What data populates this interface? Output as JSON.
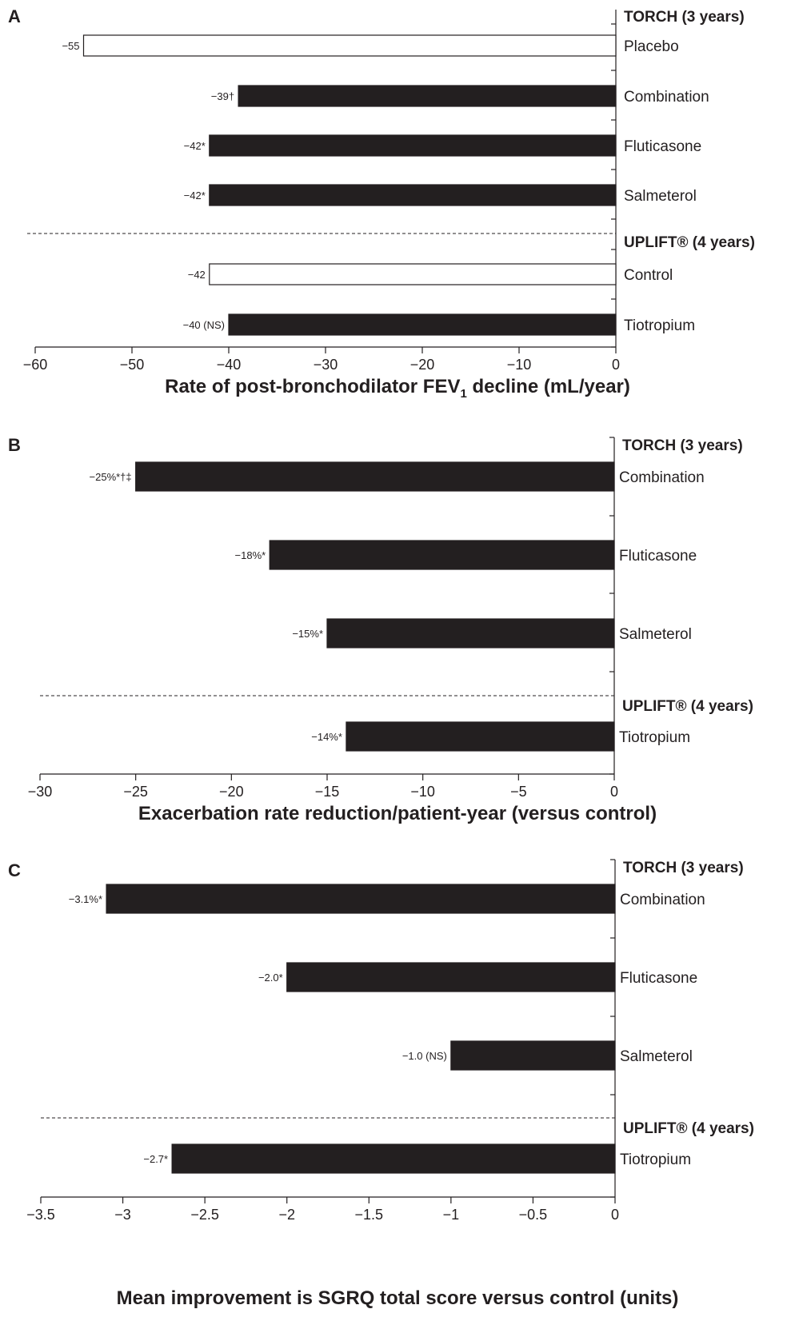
{
  "chart_data": [
    {
      "panel": "A",
      "type": "bar",
      "orientation": "horizontal",
      "xlabel_main": "Rate of post-bronchodilator FEV",
      "xlabel_sub": "1",
      "xlabel_tail": " decline (mL/year)",
      "xlim": [
        -60,
        0
      ],
      "xticks": [
        -60,
        -50,
        -40,
        -30,
        -20,
        -10,
        0
      ],
      "xtick_labels": [
        "−60",
        "−50",
        "−40",
        "−30",
        "−20",
        "−10",
        "0"
      ],
      "groups": [
        "TORCH (3 years)",
        "UPLIFT® (4 years)"
      ],
      "bars": [
        {
          "category": "Placebo",
          "value": -55,
          "label": "−55",
          "fill": "#ffffff",
          "group": 0
        },
        {
          "category": "Combination",
          "value": -39,
          "label": "−39†",
          "fill": "#231f20",
          "group": 0
        },
        {
          "category": "Fluticasone",
          "value": -42,
          "label": "−42*",
          "fill": "#231f20",
          "group": 0
        },
        {
          "category": "Salmeterol",
          "value": -42,
          "label": "−42*",
          "fill": "#231f20",
          "group": 0
        },
        {
          "category": "Control",
          "value": -42,
          "label": "−42",
          "fill": "#ffffff",
          "group": 1
        },
        {
          "category": "Tiotropium",
          "value": -40,
          "label": "−40 (NS)",
          "fill": "#231f20",
          "group": 1
        }
      ]
    },
    {
      "panel": "B",
      "type": "bar",
      "orientation": "horizontal",
      "xlabel_main": "Exacerbation rate reduction/patient-year (versus control)",
      "xlabel_sub": "",
      "xlabel_tail": "",
      "xlim": [
        -30,
        0
      ],
      "xticks": [
        -30,
        -25,
        -20,
        -15,
        -10,
        -5,
        0
      ],
      "xtick_labels": [
        "−30",
        "−25",
        "−20",
        "−15",
        "−10",
        "−5",
        "0"
      ],
      "groups": [
        "TORCH (3 years)",
        "UPLIFT® (4 years)"
      ],
      "bars": [
        {
          "category": "Combination",
          "value": -25,
          "label": "−25%*†‡",
          "fill": "#231f20",
          "group": 0
        },
        {
          "category": "Fluticasone",
          "value": -18,
          "label": "−18%*",
          "fill": "#231f20",
          "group": 0
        },
        {
          "category": "Salmeterol",
          "value": -15,
          "label": "−15%*",
          "fill": "#231f20",
          "group": 0
        },
        {
          "category": "Tiotropium",
          "value": -14,
          "label": "−14%*",
          "fill": "#231f20",
          "group": 1
        }
      ]
    },
    {
      "panel": "C",
      "type": "bar",
      "orientation": "horizontal",
      "xlabel_main": "Mean improvement is SGRQ total score versus control (units)",
      "xlabel_sub": "",
      "xlabel_tail": "",
      "xlim": [
        -3.5,
        0
      ],
      "xticks": [
        -3.5,
        -3,
        -2.5,
        -2,
        -1.5,
        -1,
        -0.5,
        0
      ],
      "xtick_labels": [
        "−3.5",
        "−3",
        "−2.5",
        "−2",
        "−1.5",
        "−1",
        "−0.5",
        "0"
      ],
      "groups": [
        "TORCH (3 years)",
        "UPLIFT® (4 years)"
      ],
      "bars": [
        {
          "category": "Combination",
          "value": -3.1,
          "label": "−3.1%*",
          "fill": "#231f20",
          "group": 0
        },
        {
          "category": "Fluticasone",
          "value": -2.0,
          "label": "−2.0*",
          "fill": "#231f20",
          "group": 0
        },
        {
          "category": "Salmeterol",
          "value": -1.0,
          "label": "−1.0 (NS)",
          "fill": "#231f20",
          "group": 0
        },
        {
          "category": "Tiotropium",
          "value": -2.7,
          "label": "−2.7*",
          "fill": "#231f20",
          "group": 1
        }
      ]
    }
  ]
}
